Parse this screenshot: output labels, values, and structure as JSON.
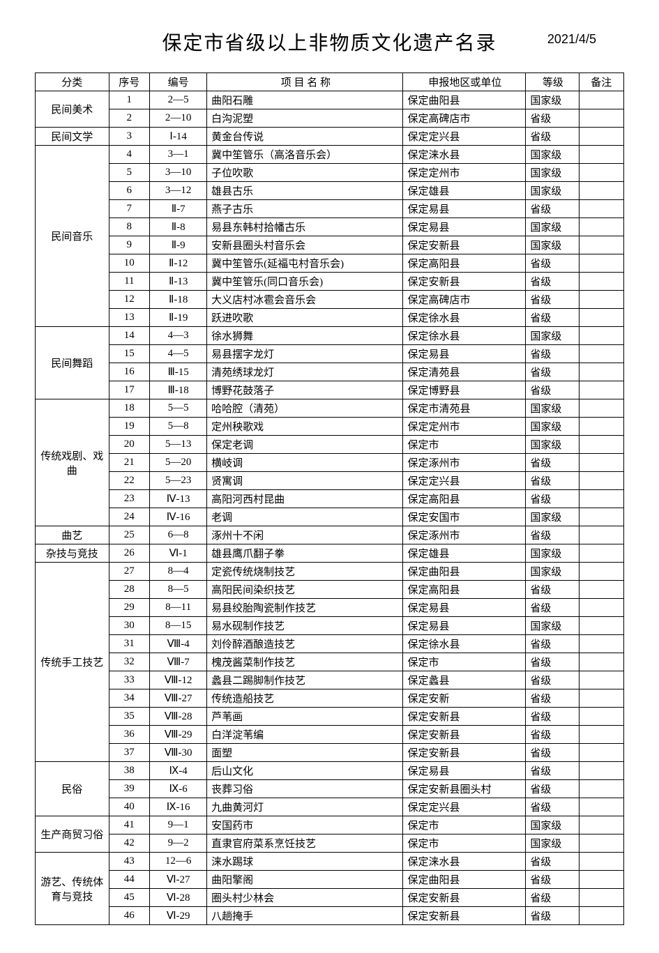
{
  "title": "保定市省级以上非物质文化遗产名录",
  "date": "2021/4/5",
  "columns": {
    "category": "分类",
    "seq": "序号",
    "code": "编号",
    "name": "项 目 名 称",
    "region": "申报地区或单位",
    "level": "等级",
    "note": "备注"
  },
  "table_style": {
    "border_color": "#000000",
    "background_color": "#ffffff",
    "font_size_body": 15,
    "font_size_title": 28,
    "font_size_date": 18
  },
  "groups": [
    {
      "category": "民间美术",
      "rows": [
        {
          "seq": "1",
          "code": "2—5",
          "name": "曲阳石雕",
          "region": "保定曲阳县",
          "level": "国家级",
          "note": ""
        },
        {
          "seq": "2",
          "code": "2—10",
          "name": "白沟泥塑",
          "region": "保定高碑店市",
          "level": "省级",
          "note": ""
        }
      ]
    },
    {
      "category": "民间文学",
      "rows": [
        {
          "seq": "3",
          "code": "Ⅰ-14",
          "name": "黄金台传说",
          "region": "保定定兴县",
          "level": "省级",
          "note": ""
        }
      ]
    },
    {
      "category": "民间音乐",
      "rows": [
        {
          "seq": "4",
          "code": "3—1",
          "name": "冀中笙管乐（高洛音乐会）",
          "region": "保定涞水县",
          "level": "国家级",
          "note": ""
        },
        {
          "seq": "5",
          "code": "3—10",
          "name": "子位吹歌",
          "region": "保定定州市",
          "level": "国家级",
          "note": ""
        },
        {
          "seq": "6",
          "code": "3—12",
          "name": "雄县古乐",
          "region": "保定雄县",
          "level": "国家级",
          "note": ""
        },
        {
          "seq": "7",
          "code": "Ⅱ-7",
          "name": "燕子古乐",
          "region": "保定易县",
          "level": "省级",
          "note": ""
        },
        {
          "seq": "8",
          "code": "Ⅱ-8",
          "name": "易县东韩村拾幡古乐",
          "region": "保定易县",
          "level": "国家级",
          "note": ""
        },
        {
          "seq": "9",
          "code": "Ⅱ-9",
          "name": "安新县圈头村音乐会",
          "region": "保定安新县",
          "level": "国家级",
          "note": ""
        },
        {
          "seq": "10",
          "code": "Ⅱ-12",
          "name": "冀中笙管乐(延福屯村音乐会)",
          "region": "保定高阳县",
          "level": "省级",
          "note": ""
        },
        {
          "seq": "11",
          "code": "Ⅱ-13",
          "name": "冀中笙管乐(同口音乐会)",
          "region": "保定安新县",
          "level": "省级",
          "note": ""
        },
        {
          "seq": "12",
          "code": "Ⅱ-18",
          "name": "大义店村冰雹会音乐会",
          "region": "保定高碑店市",
          "level": "省级",
          "note": ""
        },
        {
          "seq": "13",
          "code": "Ⅱ-19",
          "name": "跃进吹歌",
          "region": "保定徐水县",
          "level": "省级",
          "note": ""
        }
      ]
    },
    {
      "category": "民间舞蹈",
      "rows": [
        {
          "seq": "14",
          "code": "4—3",
          "name": "徐水狮舞",
          "region": "保定徐水县",
          "level": "国家级",
          "note": ""
        },
        {
          "seq": "15",
          "code": "4—5",
          "name": "易县摆字龙灯",
          "region": "保定易县",
          "level": "省级",
          "note": ""
        },
        {
          "seq": "16",
          "code": "Ⅲ-15",
          "name": "清苑绣球龙灯",
          "region": "保定清苑县",
          "level": "省级",
          "note": ""
        },
        {
          "seq": "17",
          "code": "Ⅲ-18",
          "name": "博野花鼓落子",
          "region": "保定博野县",
          "level": "省级",
          "note": ""
        }
      ]
    },
    {
      "category": "传统戏剧、戏曲",
      "rows": [
        {
          "seq": "18",
          "code": "5—5",
          "name": "哈哈腔（清苑）",
          "region": "保定市清苑县",
          "level": "国家级",
          "note": ""
        },
        {
          "seq": "19",
          "code": "5—8",
          "name": "定州秧歌戏",
          "region": "保定定州市",
          "level": "国家级",
          "note": ""
        },
        {
          "seq": "20",
          "code": "5—13",
          "name": "保定老调",
          "region": "保定市",
          "level": "国家级",
          "note": ""
        },
        {
          "seq": "21",
          "code": "5—20",
          "name": "横岐调",
          "region": "保定涿州市",
          "level": "省级",
          "note": ""
        },
        {
          "seq": "22",
          "code": "5—23",
          "name": "贤寓调",
          "region": "保定定兴县",
          "level": "省级",
          "note": ""
        },
        {
          "seq": "23",
          "code": "Ⅳ-13",
          "name": "高阳河西村昆曲",
          "region": "保定高阳县",
          "level": "省级",
          "note": ""
        },
        {
          "seq": "24",
          "code": "Ⅳ-16",
          "name": "老调",
          "region": "保定安国市",
          "level": "国家级",
          "note": ""
        }
      ]
    },
    {
      "category": "曲艺",
      "rows": [
        {
          "seq": "25",
          "code": "6—8",
          "name": "涿州十不闲",
          "region": "保定涿州市",
          "level": "省级",
          "note": ""
        }
      ]
    },
    {
      "category": "杂技与竞技",
      "rows": [
        {
          "seq": "26",
          "code": "Ⅵ-1",
          "name": "雄县鹰爪翻子拳",
          "region": "保定雄县",
          "level": "国家级",
          "note": ""
        }
      ]
    },
    {
      "category": "传统手工技艺",
      "rows": [
        {
          "seq": "27",
          "code": "8—4",
          "name": "定瓷传统烧制技艺",
          "region": "保定曲阳县",
          "level": "国家级",
          "note": ""
        },
        {
          "seq": "28",
          "code": "8—5",
          "name": "高阳民间染织技艺",
          "region": "保定高阳县",
          "level": "省级",
          "note": ""
        },
        {
          "seq": "29",
          "code": "8—11",
          "name": "易县绞胎陶瓷制作技艺",
          "region": "保定易县",
          "level": "省级",
          "note": ""
        },
        {
          "seq": "30",
          "code": "8—15",
          "name": "易水砚制作技艺",
          "region": "保定易县",
          "level": "国家级",
          "note": ""
        },
        {
          "seq": "31",
          "code": "Ⅷ-4",
          "name": "刘伶醉酒酿造技艺",
          "region": "保定徐水县",
          "level": "省级",
          "note": ""
        },
        {
          "seq": "32",
          "code": "Ⅷ-7",
          "name": "槐茂酱菜制作技艺",
          "region": "保定市",
          "level": "省级",
          "note": ""
        },
        {
          "seq": "33",
          "code": "Ⅷ-12",
          "name": "蠡县二踢脚制作技艺",
          "region": "保定蠡县",
          "level": "省级",
          "note": ""
        },
        {
          "seq": "34",
          "code": "Ⅷ-27",
          "name": "传统造船技艺",
          "region": "保定安新",
          "level": "省级",
          "note": ""
        },
        {
          "seq": "35",
          "code": "Ⅷ-28",
          "name": "芦苇画",
          "region": "保定安新县",
          "level": "省级",
          "note": ""
        },
        {
          "seq": "36",
          "code": "Ⅷ-29",
          "name": "白洋淀苇编",
          "region": "保定安新县",
          "level": "省级",
          "note": ""
        },
        {
          "seq": "37",
          "code": "Ⅷ-30",
          "name": "面塑",
          "region": "保定安新县",
          "level": "省级",
          "note": ""
        }
      ]
    },
    {
      "category": "民俗",
      "rows": [
        {
          "seq": "38",
          "code": "Ⅸ-4",
          "name": "后山文化",
          "region": "保定易县",
          "level": "省级",
          "note": ""
        },
        {
          "seq": "39",
          "code": "Ⅸ-6",
          "name": "丧葬习俗",
          "region": "保定安新县圈头村",
          "level": "省级",
          "note": ""
        },
        {
          "seq": "40",
          "code": "Ⅸ-16",
          "name": "九曲黄河灯",
          "region": "保定定兴县",
          "level": "省级",
          "note": ""
        }
      ]
    },
    {
      "category": "生产商贸习俗",
      "rows": [
        {
          "seq": "41",
          "code": "9—1",
          "name": "安国药市",
          "region": "保定市",
          "level": "国家级",
          "note": ""
        },
        {
          "seq": "42",
          "code": "9—2",
          "name": "直隶官府菜系烹饪技艺",
          "region": "保定市",
          "level": "国家级",
          "note": ""
        }
      ]
    },
    {
      "category": "游艺、传统体育与竞技",
      "rows": [
        {
          "seq": "43",
          "code": "12—6",
          "name": "涞水踢球",
          "region": "保定涞水县",
          "level": "省级",
          "note": ""
        },
        {
          "seq": "44",
          "code": "Ⅵ-27",
          "name": "曲阳擎阁",
          "region": "保定曲阳县",
          "level": "省级",
          "note": ""
        },
        {
          "seq": "45",
          "code": "Ⅵ-28",
          "name": "圈头村少林会",
          "region": "保定安新县",
          "level": "省级",
          "note": ""
        },
        {
          "seq": "46",
          "code": "Ⅵ-29",
          "name": "八趟掩手",
          "region": "保定安新县",
          "level": "省级",
          "note": ""
        }
      ]
    }
  ]
}
